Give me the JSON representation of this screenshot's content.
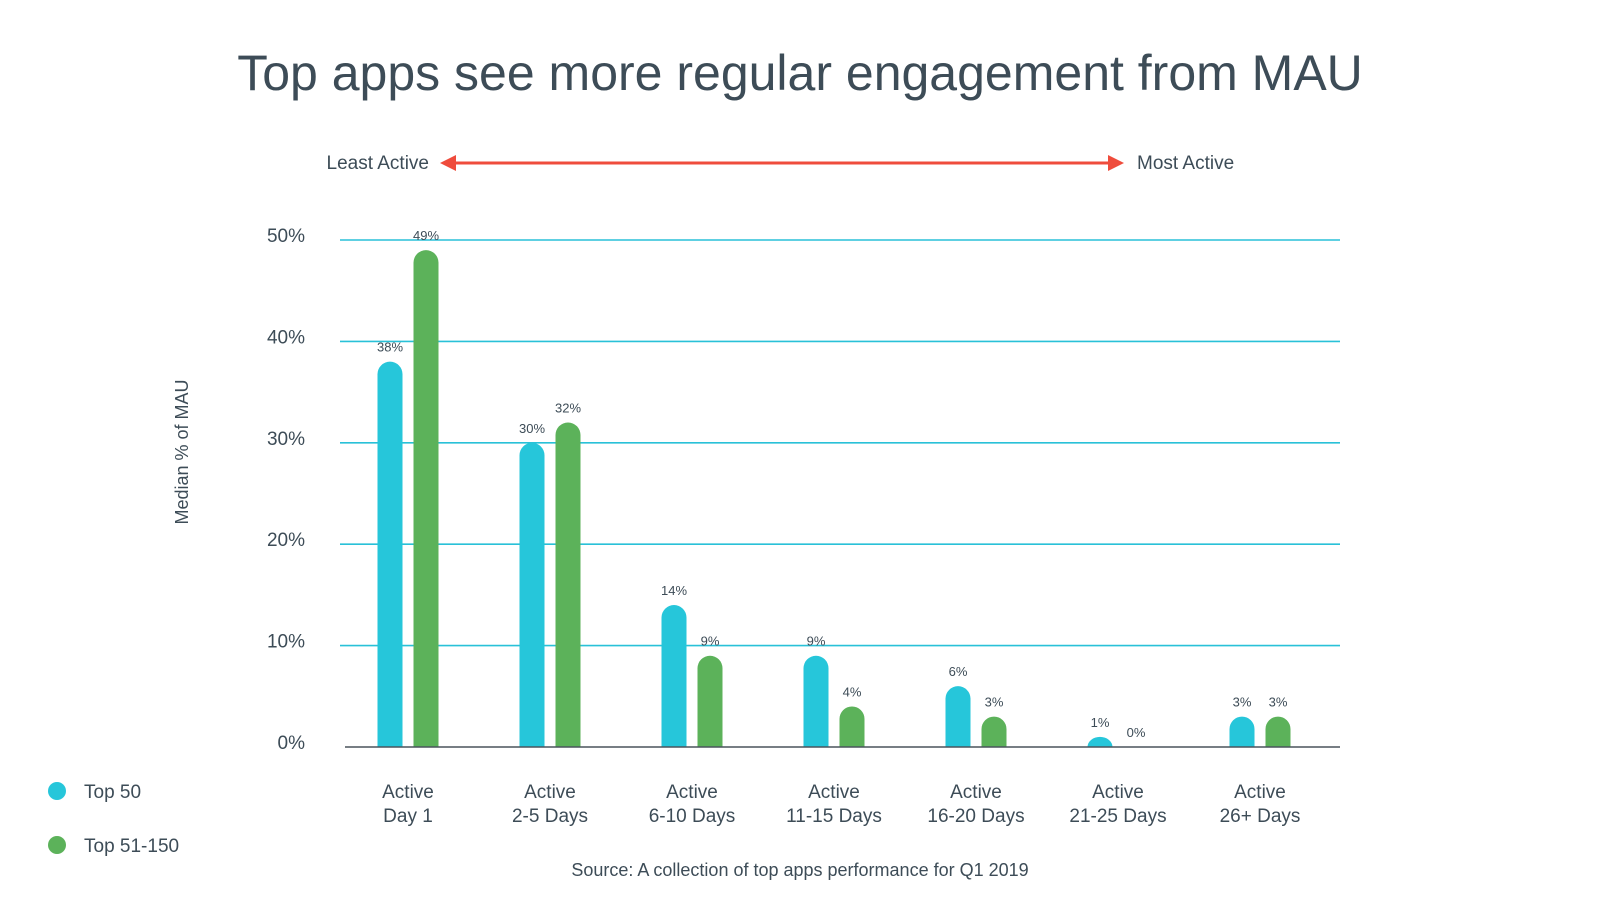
{
  "colors": {
    "top50": "#26c6da",
    "top51_150": "#5cb25a",
    "arrow": "#ef4c3c",
    "grid": "#29c1d8",
    "text": "#3d4c57"
  },
  "arrow": {
    "left_label": "Least Active",
    "right_label": "Most Active"
  },
  "source": "Source: A collection of top apps performance for Q1 2019",
  "chart_data": {
    "type": "bar",
    "title": "Top apps see more regular engagement from MAU",
    "xlabel": "",
    "ylabel": "Median % of MAU",
    "ylim": [
      0,
      50
    ],
    "yticks": [
      0,
      10,
      20,
      30,
      40,
      50
    ],
    "ytick_labels": [
      "0%",
      "10%",
      "20%",
      "30%",
      "40%",
      "50%"
    ],
    "grid": true,
    "legend_position": "bottom-left",
    "categories": [
      [
        "Active",
        "Day 1"
      ],
      [
        "Active",
        "2-5 Days"
      ],
      [
        "Active",
        "6-10 Days"
      ],
      [
        "Active",
        "11-15 Days"
      ],
      [
        "Active",
        "16-20 Days"
      ],
      [
        "Active",
        "21-25 Days"
      ],
      [
        "Active",
        "26+ Days"
      ]
    ],
    "series": [
      {
        "name": "Top 50",
        "values": [
          38,
          30,
          14,
          9,
          6,
          1,
          3
        ],
        "labels": [
          "38%",
          "30%",
          "14%",
          "9%",
          "6%",
          "1%",
          "3%"
        ]
      },
      {
        "name": "Top 51-150",
        "values": [
          49,
          32,
          9,
          4,
          3,
          0,
          3
        ],
        "labels": [
          "49%",
          "32%",
          "9%",
          "4%",
          "3%",
          "0%",
          "3%"
        ]
      }
    ]
  }
}
